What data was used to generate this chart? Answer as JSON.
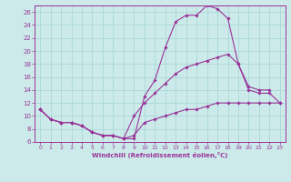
{
  "xlabel": "Windchill (Refroidissement éolien,°C)",
  "bg_color": "#cceaea",
  "line_color": "#993399",
  "grid_color": "#aad8d8",
  "xlim": [
    -0.5,
    23.5
  ],
  "ylim": [
    6,
    27
  ],
  "xticks": [
    0,
    1,
    2,
    3,
    4,
    5,
    6,
    7,
    8,
    9,
    10,
    11,
    12,
    13,
    14,
    15,
    16,
    17,
    18,
    19,
    20,
    21,
    22,
    23
  ],
  "yticks": [
    6,
    8,
    10,
    12,
    14,
    16,
    18,
    20,
    22,
    24,
    26
  ],
  "series": [
    {
      "x": [
        0,
        1,
        2,
        3,
        4,
        5,
        6,
        7,
        8,
        9,
        10,
        11,
        12,
        13,
        14,
        15,
        16,
        17,
        18,
        19,
        20,
        21,
        22,
        23
      ],
      "y": [
        11,
        9.5,
        9,
        9,
        8.5,
        7.5,
        7,
        7,
        6.5,
        7,
        9,
        9.5,
        10,
        10.5,
        11,
        11,
        11.5,
        12,
        12,
        12,
        12,
        12,
        12,
        12
      ]
    },
    {
      "x": [
        0,
        1,
        2,
        3,
        4,
        5,
        6,
        7,
        8,
        9,
        10,
        11,
        12,
        13,
        14,
        15,
        16,
        17,
        18,
        19,
        20,
        21,
        22
      ],
      "y": [
        11,
        9.5,
        9,
        9,
        8.5,
        7.5,
        7,
        7,
        6.5,
        6.5,
        13,
        15.5,
        20.5,
        24.5,
        25.5,
        25.5,
        27,
        26.5,
        25,
        18,
        14.5,
        14,
        14
      ]
    },
    {
      "x": [
        0,
        1,
        2,
        3,
        4,
        5,
        6,
        7,
        8,
        9,
        10,
        11,
        12,
        13,
        14,
        15,
        16,
        17,
        18,
        19,
        20,
        21,
        22,
        23
      ],
      "y": [
        11,
        9.5,
        9,
        9,
        8.5,
        7.5,
        7,
        7,
        6.5,
        10,
        12,
        13.5,
        15,
        16.5,
        17.5,
        18,
        18.5,
        19,
        19.5,
        18,
        14,
        13.5,
        13.5,
        12
      ]
    }
  ]
}
